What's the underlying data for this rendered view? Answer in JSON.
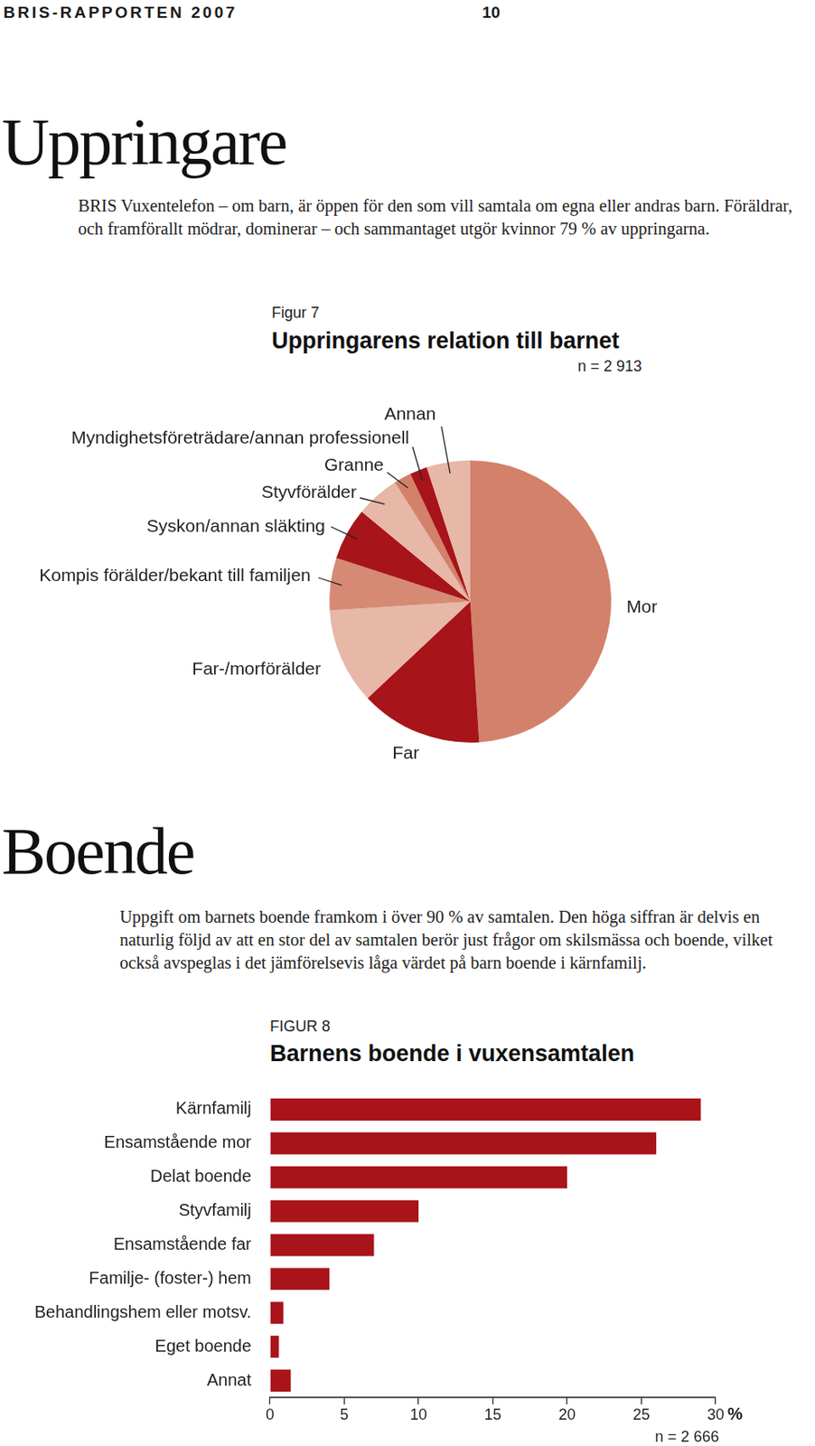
{
  "header": {
    "running_title": "BRIS-RAPPORTEN 2007",
    "page": "10"
  },
  "sections": [
    {
      "heading": "Uppringare",
      "text": "BRIS Vuxentelefon – om barn, är öppen för den som vill samtala om egna eller andras barn. Föräldrar, och framförallt mödrar, dominerar – och sammantaget utgör kvinnor 79 % av uppringarna."
    },
    {
      "heading": "Boende",
      "text": "Uppgift om barnets boende framkom i över 90 % av samtalen. Den höga siffran är delvis en naturlig följd av att en stor del av samtalen berör just frågor om skilsmässa och boende, vilket också avspeglas i det jämförelsevis låga värdet på barn boende i kärnfamilj."
    }
  ],
  "chart_data": [
    {
      "type": "pie",
      "figure_label": "Figur 7",
      "title": "Uppringarens relation till barnet",
      "subtitle": "n = 2 913",
      "categories": [
        "Mor",
        "Far",
        "Far-/morförälder",
        "Kompis förälder/bekant till familjen",
        "Syskon/annan släkting",
        "Styvförälder",
        "Granne",
        "Myndighetsföreträdare/annan professionell",
        "Annan"
      ],
      "values": [
        49,
        14,
        11,
        6,
        6,
        5,
        2,
        2,
        5
      ],
      "colors": [
        "#d3816a",
        "#a71419",
        "#e7b7a7",
        "#d68a73",
        "#a71419",
        "#e7b7a7",
        "#d3816a",
        "#a71419",
        "#e7b7a7"
      ]
    },
    {
      "type": "bar",
      "figure_label": "FIGUR 8",
      "title": "Barnens boende i vuxensamtalen",
      "subtitle": "n = 2 666",
      "orientation": "horizontal",
      "categories": [
        "Kärnfamilj",
        "Ensamstående mor",
        "Delat boende",
        "Styvfamilj",
        "Ensamstående far",
        "Familje- (foster-) hem",
        "Behandlingshem eller motsv.",
        "Eget boende",
        "Annat"
      ],
      "values": [
        29,
        26,
        20,
        10,
        7,
        4,
        0.9,
        0.6,
        1.4
      ],
      "color": "#a81419",
      "xlim": [
        0,
        30
      ],
      "xticks": [
        0,
        5,
        10,
        15,
        20,
        25,
        30
      ],
      "xlabel": "%",
      "grid": false
    }
  ]
}
